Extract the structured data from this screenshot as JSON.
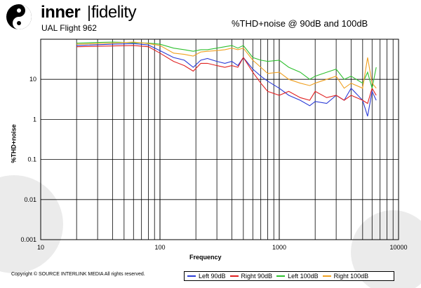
{
  "logo": {
    "inner": "inner",
    "fidelity": "fidelity"
  },
  "subtitle": "UAL Flight 962",
  "copyright": "Copyright © SOURCE INTERLINK MEDIA All rights reserved.",
  "colors": {
    "left90": "#2a3bd6",
    "right90": "#e02020",
    "left100": "#2ec02e",
    "right100": "#f0a020"
  },
  "chart_data": {
    "type": "line",
    "title": "%THD+noise @ 90dB and 100dB",
    "xlabel": "Frequency",
    "ylabel": "%THD+noise",
    "xscale": "log",
    "yscale": "log",
    "xlim": [
      10,
      10000
    ],
    "ylim": [
      0.001,
      100
    ],
    "x_ticks": [
      "10",
      "100",
      "1000",
      "10000"
    ],
    "y_ticks": [
      "0.001",
      "0.01",
      "0.1",
      "1",
      "10"
    ],
    "legend_position": "bottom",
    "grid": true,
    "series": [
      {
        "name": "Left 90dB",
        "color": "#2a3bd6",
        "x": [
          20,
          40,
          60,
          80,
          100,
          130,
          160,
          190,
          220,
          250,
          300,
          350,
          400,
          450,
          500,
          600,
          700,
          800,
          1000,
          1200,
          1500,
          1800,
          2000,
          2500,
          3000,
          3500,
          4000,
          5000,
          5500,
          6000,
          6500
        ],
        "y": [
          70,
          75,
          78,
          72,
          52,
          35,
          30,
          20,
          30,
          33,
          28,
          25,
          28,
          22,
          35,
          18,
          12,
          9,
          6,
          4,
          3,
          2.2,
          2.8,
          2.5,
          4,
          3,
          6,
          3,
          1.2,
          5,
          3
        ]
      },
      {
        "name": "Right 90dB",
        "color": "#e02020",
        "x": [
          20,
          40,
          60,
          80,
          100,
          130,
          160,
          190,
          220,
          250,
          300,
          350,
          400,
          450,
          500,
          600,
          700,
          800,
          1000,
          1200,
          1500,
          1800,
          2000,
          2500,
          3000,
          3500,
          4000,
          5000,
          5500,
          6000,
          6500
        ],
        "y": [
          65,
          68,
          70,
          65,
          45,
          28,
          22,
          16,
          25,
          25,
          22,
          20,
          22,
          20,
          35,
          15,
          8,
          5,
          4,
          5,
          3.5,
          3,
          5,
          3.5,
          4,
          3,
          4,
          3,
          2.5,
          6,
          4
        ]
      },
      {
        "name": "Left 100dB",
        "color": "#2ec02e",
        "x": [
          20,
          40,
          60,
          80,
          100,
          130,
          160,
          190,
          220,
          250,
          300,
          350,
          400,
          450,
          500,
          600,
          700,
          800,
          1000,
          1200,
          1500,
          1800,
          2000,
          2500,
          3000,
          3500,
          4000,
          5000,
          5500,
          6000,
          6500
        ],
        "y": [
          80,
          85,
          82,
          80,
          75,
          60,
          55,
          50,
          55,
          55,
          60,
          65,
          70,
          60,
          70,
          35,
          30,
          28,
          30,
          20,
          15,
          10,
          12,
          15,
          18,
          10,
          12,
          8,
          15,
          6,
          20
        ]
      },
      {
        "name": "Right 100dB",
        "color": "#f0a020",
        "x": [
          20,
          40,
          60,
          80,
          100,
          130,
          160,
          190,
          220,
          250,
          300,
          350,
          400,
          450,
          500,
          600,
          700,
          800,
          1000,
          1200,
          1500,
          1800,
          2000,
          2500,
          3000,
          3500,
          4000,
          5000,
          5500,
          6000,
          6500
        ],
        "y": [
          75,
          80,
          85,
          78,
          70,
          45,
          42,
          38,
          48,
          50,
          52,
          55,
          60,
          55,
          60,
          30,
          20,
          14,
          15,
          10,
          8,
          7,
          8,
          10,
          12,
          6,
          8,
          6,
          35,
          8,
          6
        ]
      }
    ]
  }
}
